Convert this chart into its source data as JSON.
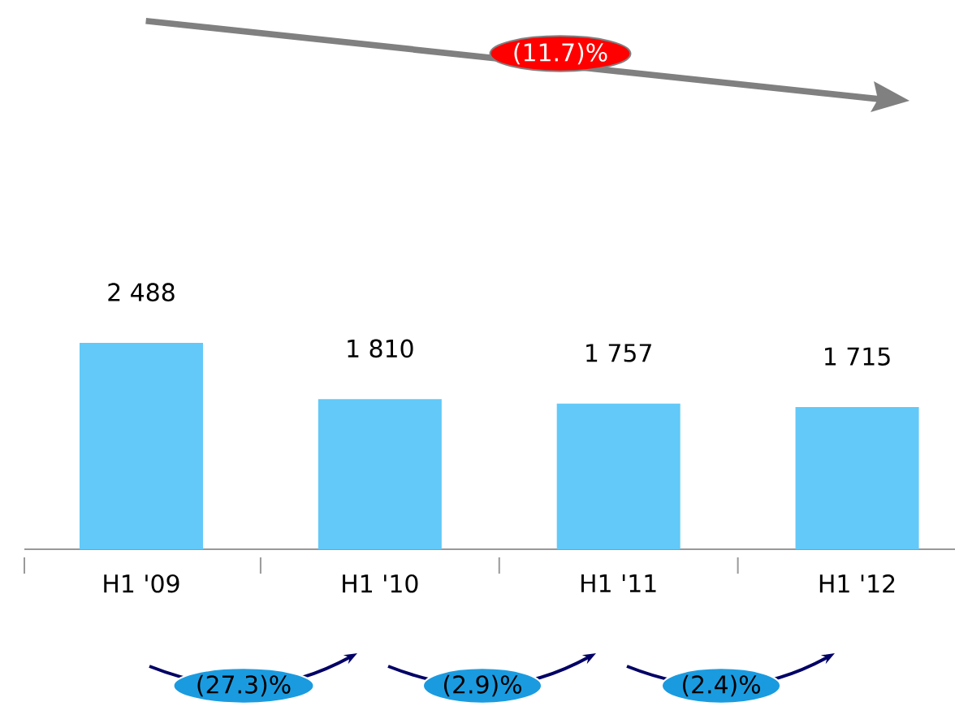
{
  "chart_data": {
    "type": "bar",
    "categories": [
      "H1 '09",
      "H1 '10",
      "H1 '11",
      "H1 '12"
    ],
    "values": [
      2488,
      1810,
      1757,
      1715
    ],
    "value_labels": [
      "2 488",
      "1 810",
      "1 757",
      "1 715"
    ],
    "color": "#62c9f8",
    "annotations": [
      "(11.7)%",
      "(27.3)%",
      "(2.9)%",
      "(2.4)%"
    ]
  }
}
